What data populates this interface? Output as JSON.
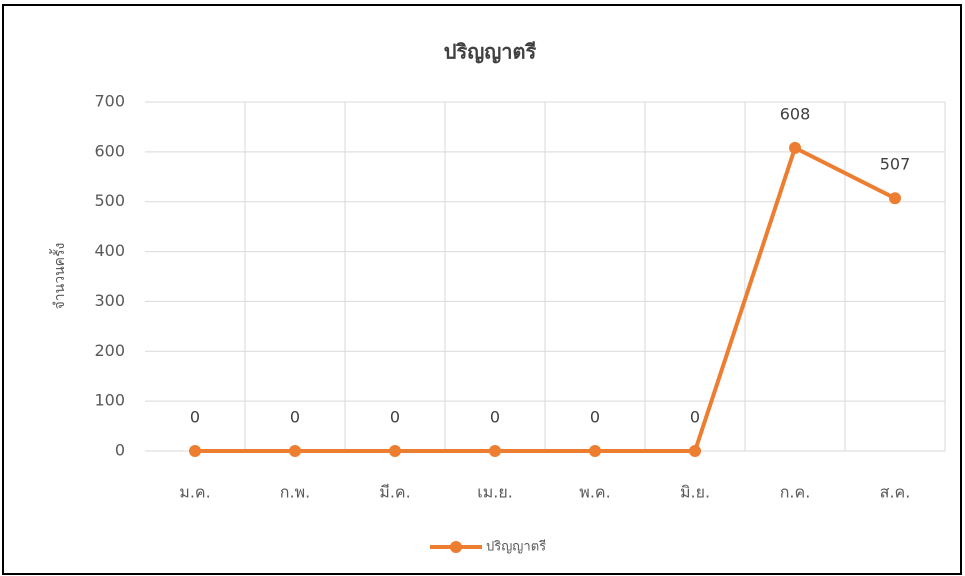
{
  "chart_data": {
    "type": "line",
    "title": "ปริญญาตรี",
    "y_label": "จำนวนครั้ง",
    "categories": [
      "ม.ค.",
      "ก.พ.",
      "มี.ค.",
      "เม.ย.",
      "พ.ค.",
      "มิ.ย.",
      "ก.ค.",
      "ส.ค."
    ],
    "series": [
      {
        "name": "ปริญญาตรี",
        "color": "#ed7d31",
        "values": [
          0,
          0,
          0,
          0,
          0,
          0,
          608,
          507
        ]
      }
    ],
    "ylim": [
      0,
      700
    ],
    "yticks": [
      0,
      100,
      200,
      300,
      400,
      500,
      600,
      700
    ],
    "grid": true,
    "legend": "bottom"
  }
}
